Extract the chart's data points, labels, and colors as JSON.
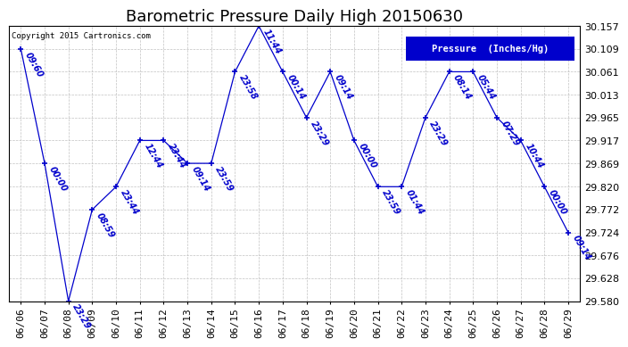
{
  "title": "Barometric Pressure Daily High 20150630",
  "legend_label": "Pressure  (Inches/Hg)",
  "copyright": "Copyright 2015 Cartronics.com",
  "ylim": [
    29.58,
    30.157
  ],
  "yticks": [
    29.58,
    29.628,
    29.676,
    29.724,
    29.772,
    29.82,
    29.869,
    29.917,
    29.965,
    30.013,
    30.061,
    30.109,
    30.157
  ],
  "dates": [
    "06/06",
    "06/07",
    "06/08",
    "06/09",
    "06/10",
    "06/11",
    "06/12",
    "06/13",
    "06/14",
    "06/15",
    "06/16",
    "06/17",
    "06/18",
    "06/19",
    "06/20",
    "06/21",
    "06/22",
    "06/23",
    "06/24",
    "06/25",
    "06/26",
    "06/27",
    "06/28",
    "06/29"
  ],
  "values": [
    30.109,
    29.869,
    29.58,
    29.772,
    29.82,
    29.917,
    29.917,
    29.869,
    29.869,
    30.061,
    30.157,
    30.061,
    29.965,
    30.061,
    29.917,
    29.82,
    29.82,
    29.965,
    30.061,
    30.061,
    29.965,
    29.917,
    29.82,
    29.724
  ],
  "times": [
    "09:60",
    "00:00",
    "23:29",
    "08:59",
    "23:44",
    "12:44",
    "23:44",
    "09:14",
    "23:59",
    "23:58",
    "11:44",
    "00:14",
    "23:29",
    "09:14",
    "00:00",
    "23:59",
    "01:44",
    "23:29",
    "08:14",
    "05:44",
    "07:29",
    "10:44",
    "00:00",
    "09:14"
  ],
  "line_color": "#0000cc",
  "marker_color": "#0000cc",
  "bg_color": "#ffffff",
  "grid_color": "#bbbbbb",
  "title_fontsize": 13,
  "tick_fontsize": 8,
  "annotation_fontsize": 7,
  "legend_bg": "#0000cc",
  "legend_fg": "#ffffff"
}
